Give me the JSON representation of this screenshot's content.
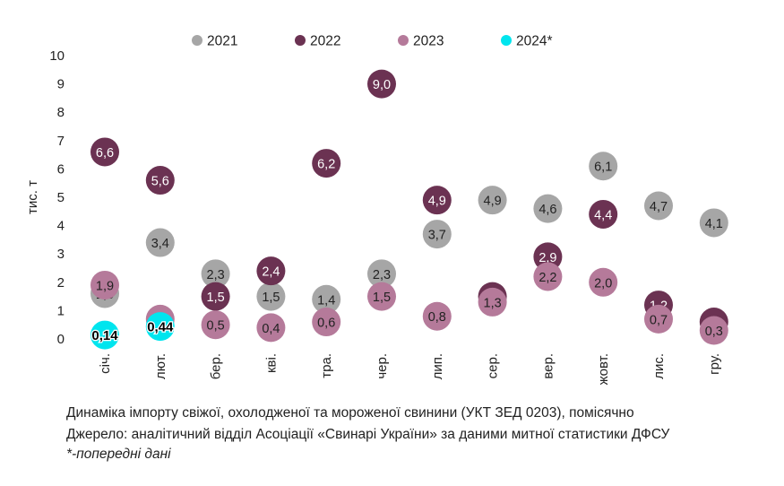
{
  "chart_data": {
    "type": "scatter",
    "ylabel": "тис. т",
    "ylim": [
      0,
      10
    ],
    "yticks": [
      0,
      1,
      2,
      3,
      4,
      5,
      6,
      7,
      8,
      9,
      10
    ],
    "categories": [
      "січ.",
      "лют.",
      "бер.",
      "кві.",
      "тра.",
      "чер.",
      "лип.",
      "сер.",
      "вер.",
      "жовт.",
      "лис.",
      "гру."
    ],
    "grid": false,
    "legend_position": "top",
    "series": [
      {
        "name": "2021",
        "color": "#a6a6a6",
        "values": [
          1.6,
          3.4,
          2.3,
          1.5,
          1.4,
          2.3,
          3.7,
          4.9,
          4.6,
          6.1,
          4.7,
          4.1
        ],
        "labels": [
          "1,6",
          "3,4",
          "2,3",
          "1,5",
          "1,4",
          "2,3",
          "3,7",
          "4,9",
          "4,6",
          "6,1",
          "4,7",
          "4,1"
        ]
      },
      {
        "name": "2022",
        "color": "#6b3252",
        "values": [
          6.6,
          5.6,
          1.5,
          2.4,
          6.2,
          9.0,
          4.9,
          1.5,
          2.9,
          4.4,
          1.2,
          0.6
        ],
        "labels": [
          "6,6",
          "5,6",
          "1,5",
          "2,4",
          "6,2",
          "9,0",
          "4,9",
          "1,5",
          "2,9",
          "4,4",
          "1,2",
          "0,6"
        ]
      },
      {
        "name": "2023",
        "color": "#b57a9a",
        "values": [
          1.9,
          0.7,
          0.5,
          0.4,
          0.6,
          1.5,
          0.8,
          1.3,
          2.2,
          2.0,
          0.7,
          0.3
        ],
        "labels": [
          "1,9",
          "0,7",
          "0,5",
          "0,4",
          "0,6",
          "1,5",
          "0,8",
          "1,3",
          "2,2",
          "2,0",
          "0,7",
          "0,3"
        ]
      },
      {
        "name": "2024*",
        "color": "#00e5ee",
        "values": [
          0.14,
          0.44
        ],
        "labels": [
          "0,14",
          "0,44"
        ]
      }
    ]
  },
  "captions": {
    "line1": "Динаміка імпорту свіжої, охолодженої та мороженої свинини (УКТ ЗЕД 0203), помісячно",
    "line2": "Джерело: аналітичний відділ Асоціації «Свинарі України» за даними митної статистики ДФСУ",
    "line3": "*-попередні дані"
  }
}
